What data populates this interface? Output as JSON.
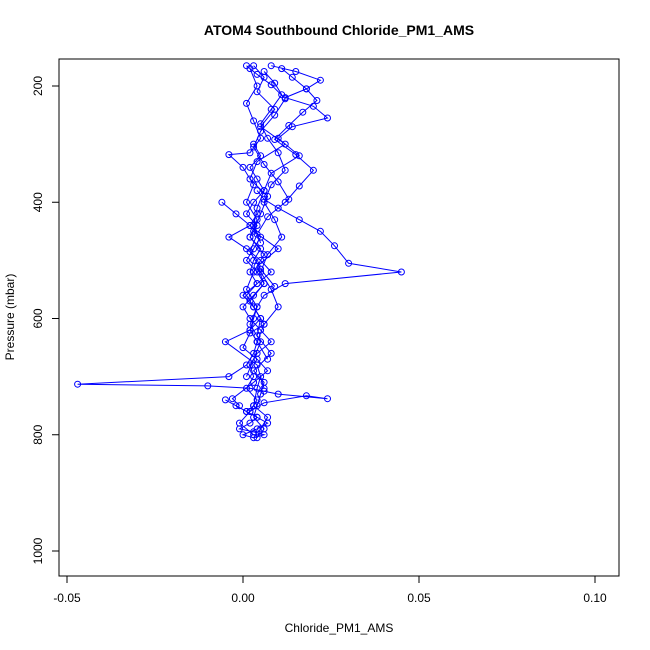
{
  "chart_data": {
    "type": "scatter",
    "title": "ATOM4 Southbound Chloride_PM1_AMS",
    "xlabel": "Chloride_PM1_AMS",
    "ylabel": "Pressure (mbar)",
    "xlim": [
      -0.05,
      0.11
    ],
    "ylim": [
      1040,
      160
    ],
    "x_ticks": [
      -0.05,
      0.0,
      0.05,
      0.1
    ],
    "x_tick_labels": [
      "-0.05",
      "0.00",
      "0.05",
      "0.10"
    ],
    "y_ticks": [
      200,
      400,
      600,
      800,
      1000
    ],
    "y_tick_labels": [
      "200",
      "400",
      "600",
      "800",
      "1000"
    ],
    "grid": false,
    "y_axis_reversed": true,
    "marker": "open-circle",
    "line": true,
    "color": "#0000ff",
    "series": [
      {
        "x": [
          0.003,
          0.006,
          0.004,
          0.009,
          0.005,
          0.012,
          0.004,
          0.002,
          0.007,
          0.005,
          0.003,
          0.01,
          0.004,
          0.006,
          0.002,
          0.005,
          0.004,
          0.008,
          0.003,
          0.006,
          0.005,
          0.004,
          0.003,
          0.006,
          0.004,
          0.005,
          0.007,
          0.003,
          0.004,
          0.005
        ],
        "y": [
          165,
          185,
          210,
          240,
          270,
          300,
          330,
          360,
          390,
          420,
          450,
          480,
          510,
          540,
          570,
          600,
          630,
          660,
          690,
          710,
          730,
          750,
          770,
          790,
          805,
          790,
          770,
          750,
          720,
          700
        ]
      },
      {
        "x": [
          0.008,
          0.015,
          0.022,
          0.018,
          0.012,
          0.02,
          0.024,
          0.014,
          0.01,
          0.016,
          0.008,
          0.006,
          0.004,
          0.003,
          0.005
        ],
        "y": [
          165,
          175,
          190,
          205,
          220,
          235,
          255,
          270,
          290,
          320,
          350,
          380,
          410,
          440,
          470
        ]
      },
      {
        "x": [
          0.004,
          0.006,
          0.01,
          0.016,
          0.022,
          0.026,
          0.03,
          0.045,
          0.012,
          0.006,
          0.004,
          0.003,
          0.002,
          0.004
        ],
        "y": [
          380,
          395,
          410,
          430,
          450,
          475,
          505,
          520,
          540,
          560,
          580,
          600,
          620,
          640
        ]
      },
      {
        "x": [
          0.004,
          0.003,
          0.001,
          -0.004,
          -0.047,
          -0.01,
          0.002,
          0.006,
          0.01,
          0.024,
          0.018,
          0.006,
          0.002,
          -0.001,
          0.003
        ],
        "y": [
          640,
          660,
          680,
          700,
          713,
          716,
          720,
          725,
          730,
          738,
          733,
          745,
          760,
          780,
          800
        ]
      },
      {
        "x": [
          -0.006,
          -0.002,
          0.002,
          -0.004,
          0.001,
          0.005,
          0.008,
          0.004,
          0.0,
          0.003,
          0.006,
          0.002,
          0.0,
          0.004,
          0.007,
          0.003,
          -0.003,
          -0.001
        ],
        "y": [
          400,
          420,
          440,
          460,
          480,
          500,
          520,
          540,
          560,
          580,
          610,
          625,
          650,
          670,
          690,
          710,
          738,
          750
        ]
      },
      {
        "x": [
          0.002,
          0.004,
          0.001,
          0.003,
          0.005,
          0.002,
          -0.004,
          0.0,
          0.003,
          0.001,
          0.004,
          0.002,
          0.006,
          0.003,
          0.001,
          0.004,
          0.002,
          0.005,
          0.003,
          0.001
        ],
        "y": [
          170,
          200,
          230,
          260,
          290,
          315,
          318,
          340,
          370,
          400,
          430,
          460,
          490,
          520,
          550,
          580,
          610,
          640,
          670,
          700
        ]
      },
      {
        "x": [
          0.006,
          0.009,
          0.011,
          0.008,
          0.005,
          0.007,
          0.01,
          0.012,
          0.008,
          0.006,
          0.009,
          0.011,
          0.007,
          0.005,
          0.008,
          0.01,
          0.006,
          0.004,
          0.007
        ],
        "y": [
          175,
          195,
          215,
          240,
          265,
          290,
          315,
          345,
          370,
          400,
          430,
          460,
          490,
          520,
          550,
          580,
          610,
          640,
          670
        ]
      },
      {
        "x": [
          0.003,
          0.005,
          0.002,
          0.004,
          0.006,
          0.003,
          0.001,
          0.004,
          0.002,
          0.005,
          0.003,
          0.002,
          0.004,
          0.001,
          0.003,
          0.005,
          0.002,
          -0.005,
          0.004,
          0.006
        ],
        "y": [
          300,
          320,
          340,
          360,
          380,
          400,
          420,
          440,
          460,
          480,
          500,
          520,
          540,
          560,
          580,
          600,
          620,
          640,
          680,
          720
        ]
      },
      {
        "x": [
          0.001,
          0.004,
          0.008,
          0.012,
          0.009,
          0.005,
          0.003,
          0.006,
          0.01,
          0.013,
          0.007,
          0.004,
          0.002,
          0.005,
          0.009
        ],
        "y": [
          165,
          180,
          198,
          222,
          250,
          278,
          305,
          335,
          365,
          395,
          425,
          455,
          485,
          515,
          545
        ]
      },
      {
        "x": [
          -0.005,
          -0.002,
          0.001,
          0.004,
          0.002,
          -0.001,
          0.003,
          0.006,
          0.003,
          0.0,
          0.004,
          0.007,
          0.004,
          0.001,
          0.003
        ],
        "y": [
          740,
          750,
          760,
          770,
          780,
          790,
          795,
          800,
          805,
          800,
          790,
          780,
          770,
          760,
          750
        ]
      },
      {
        "x": [
          0.011,
          0.014,
          0.018,
          0.021,
          0.017,
          0.013,
          0.009,
          0.015,
          0.02,
          0.016,
          0.012
        ],
        "y": [
          170,
          185,
          205,
          225,
          245,
          268,
          292,
          318,
          345,
          372,
          400
        ]
      },
      {
        "x": [
          0.004,
          0.002,
          0.005,
          0.003,
          0.001,
          0.004,
          0.006,
          0.003,
          0.0,
          0.002,
          0.005,
          0.008,
          0.004,
          0.002,
          0.003,
          0.001,
          0.004,
          0.002
        ],
        "y": [
          420,
          440,
          460,
          480,
          500,
          520,
          540,
          560,
          580,
          600,
          620,
          640,
          660,
          680,
          700,
          720,
          740,
          760
        ]
      }
    ]
  }
}
